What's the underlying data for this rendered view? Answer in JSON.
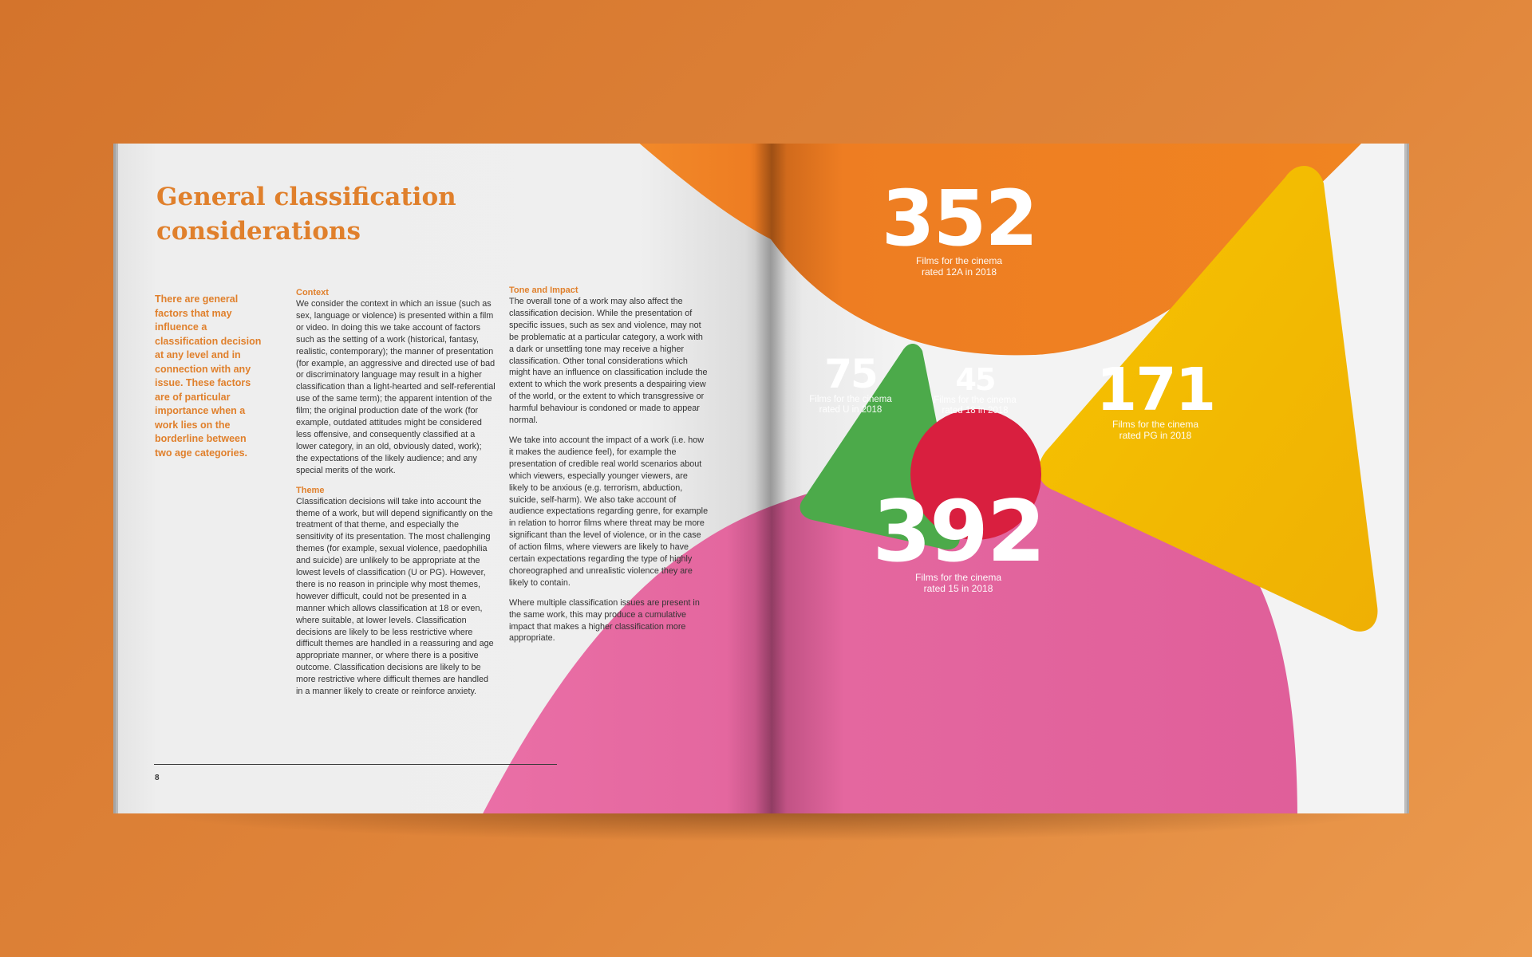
{
  "heading": "General classification considerations",
  "intro": "There are general factors that may influence a classification decision at any level and in connection with any issue. These factors are of particular importance when a work lies on the borderline between two age categories.",
  "sections": {
    "context": {
      "title": "Context",
      "body": "We consider the context in which an issue (such as sex, language or violence) is presented within a film or video. In doing this we take account of factors such as the setting of a work (historical, fantasy, realistic, contemporary); the manner of presentation (for example, an aggressive and directed use of bad or discriminatory language may result in a higher classification than a light-hearted and self-referential use of the same term); the apparent intention of the film; the original production date of the work (for example, outdated attitudes might be considered less offensive, and consequently classified at a lower category, in an old, obviously dated, work); the expectations of the likely audience; and any special merits of the work."
    },
    "theme": {
      "title": "Theme",
      "body": "Classification decisions will take into account the theme of a work, but will depend significantly on the treatment of that theme, and especially the sensitivity of its presentation. The most challenging themes (for example, sexual violence, paedophilia and suicide) are unlikely to be appropriate at the lowest levels of classification (U or PG). However, there is no reason in principle why most themes, however difficult, could not be presented in a manner which allows classification at 18 or even, where suitable, at lower levels. Classification decisions are likely to be less restrictive where difficult themes are handled in a reassuring and age appropriate manner, or where there is a positive outcome. Classification decisions are likely to be more restrictive where difficult themes are handled in a manner likely to create or reinforce anxiety."
    },
    "tone": {
      "title": "Tone and Impact",
      "body_1": "The overall tone of a work may also affect the classification decision. While the presentation of specific issues, such as sex and violence, may not be problematic at a particular category, a work with a dark or unsettling tone may receive a higher classification. Other tonal considerations which might have an influence on classification include the extent to which the work presents a despairing view of the world, or the extent to which transgressive or harmful behaviour is condoned or made to appear normal.",
      "body_2": "We take into account the impact of a work (i.e. how it makes the audience feel), for example the presentation of credible real world scenarios about which viewers, especially younger viewers, are likely to be anxious (e.g. terrorism, abduction, suicide, self-harm). We also take account of audience expectations regarding genre, for example in relation to horror films where threat may be more significant than the level of violence, or in the case of action films, where viewers are likely to have certain expectations regarding the type of highly choreographed and unrealistic violence they are likely to contain.",
      "body_3": "Where multiple classification issues are present in the same work, this may produce a cumulative impact that makes a higher classification more appropriate."
    }
  },
  "page_number": "8",
  "stats": {
    "rated_12a": {
      "number": "352",
      "caption": "Films for the cinema\nrated 12A in 2018",
      "color": "#ee7d22"
    },
    "rated_15": {
      "number": "392",
      "caption": "Films for the cinema\nrated 15 in 2018",
      "color": "#e4679f"
    },
    "rated_pg": {
      "number": "171",
      "caption": "Films for the cinema\nrated PG in 2018",
      "color": "#f2b705"
    },
    "rated_u": {
      "number": "75",
      "caption": "Films for the cinema\nrated U in 2018",
      "color": "#4caa4a"
    },
    "rated_18": {
      "number": "45",
      "caption": "Films for the cinema\nrated 18 in 2018",
      "color": "#d91f3f"
    }
  },
  "colors": {
    "accent": "#e0802c",
    "background": "#de7f35"
  }
}
